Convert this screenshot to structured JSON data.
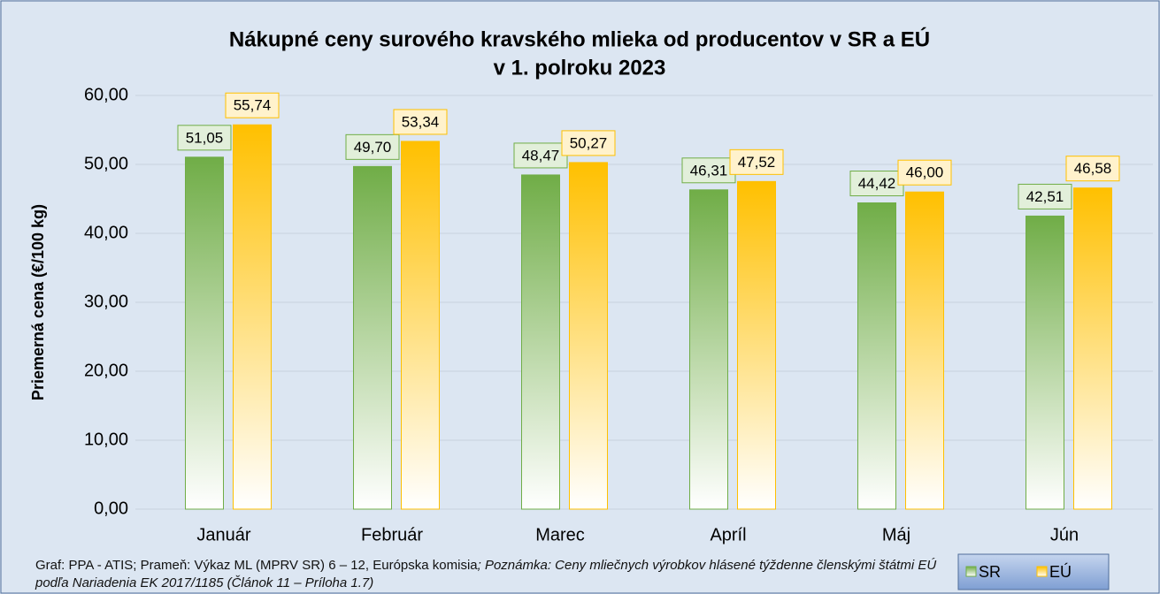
{
  "chart_data": {
    "type": "bar",
    "title": [
      "Nákupné ceny surového kravského mlieka od producentov v SR a EÚ",
      "v 1. polroku 2023"
    ],
    "y_label": "Priemerná cena (€/100 kg)",
    "categories": [
      "Január",
      "Február",
      "Marec",
      "Apríl",
      "Máj",
      "Jún"
    ],
    "series": [
      {
        "name": "SR",
        "color": "#70ad47",
        "values": [
          51.05,
          49.7,
          48.47,
          46.31,
          44.42,
          42.51
        ],
        "value_labels": [
          "51,05",
          "49,70",
          "48,47",
          "46,31",
          "44,42",
          "42,51"
        ]
      },
      {
        "name": "EÚ",
        "color": "#ffc000",
        "values": [
          55.74,
          53.34,
          50.27,
          47.52,
          46.0,
          46.58
        ],
        "value_labels": [
          "55,74",
          "53,34",
          "50,27",
          "47,52",
          "46,00",
          "46,58"
        ]
      }
    ],
    "ylim": [
      0,
      60
    ],
    "yticks": [
      {
        "value": 0,
        "label": "0,00"
      },
      {
        "value": 10,
        "label": "10,00"
      },
      {
        "value": 20,
        "label": "20,00"
      },
      {
        "value": 30,
        "label": "30,00"
      },
      {
        "value": 40,
        "label": "40,00"
      },
      {
        "value": 50,
        "label": "50,00"
      },
      {
        "value": 60,
        "label": "60,00"
      }
    ],
    "grid": true,
    "legend": "lower right",
    "source": "Graf: PPA - ATIS; Prameň: Výkaz ML (MPRV SR) 6 – 12, Európska komisia",
    "note": "; Poznámka: Ceny mliečnych výrobkov hlásené týždenne členskými štátmi EÚ podľa Nariadenia EK 2017/1185 (Článok 11 – Príloha 1.7)"
  }
}
